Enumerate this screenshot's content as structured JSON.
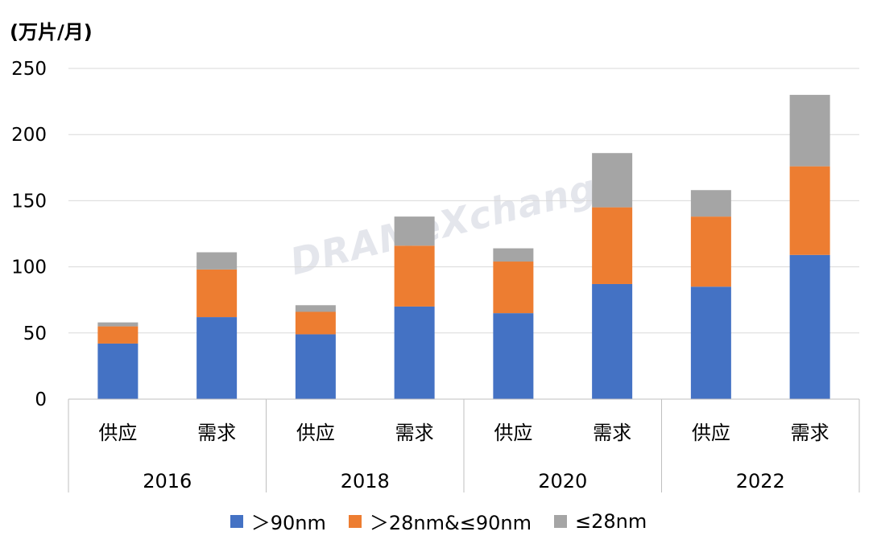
{
  "chart_data": {
    "type": "bar",
    "stacked": true,
    "ylabel": "(万片/月)",
    "ylim": [
      0,
      250
    ],
    "yticks": [
      0,
      50,
      100,
      150,
      200,
      250
    ],
    "grid": true,
    "legend_position": "bottom",
    "watermark": "DRAMeXchange",
    "groups": [
      "2016",
      "2018",
      "2020",
      "2022"
    ],
    "categories": [
      "供应",
      "需求",
      "供应",
      "需求",
      "供应",
      "需求",
      "供应",
      "需求"
    ],
    "series": [
      {
        "name": "＞90nm",
        "color": "#4472C4",
        "values": [
          42,
          62,
          49,
          70,
          65,
          87,
          85,
          109
        ]
      },
      {
        "name": "＞28nm&≤90nm",
        "color": "#ED7D31",
        "values": [
          13,
          36,
          17,
          46,
          39,
          58,
          53,
          67
        ]
      },
      {
        "name": "≤28nm",
        "color": "#A5A5A5",
        "values": [
          3,
          13,
          5,
          22,
          10,
          41,
          20,
          54
        ]
      }
    ]
  }
}
